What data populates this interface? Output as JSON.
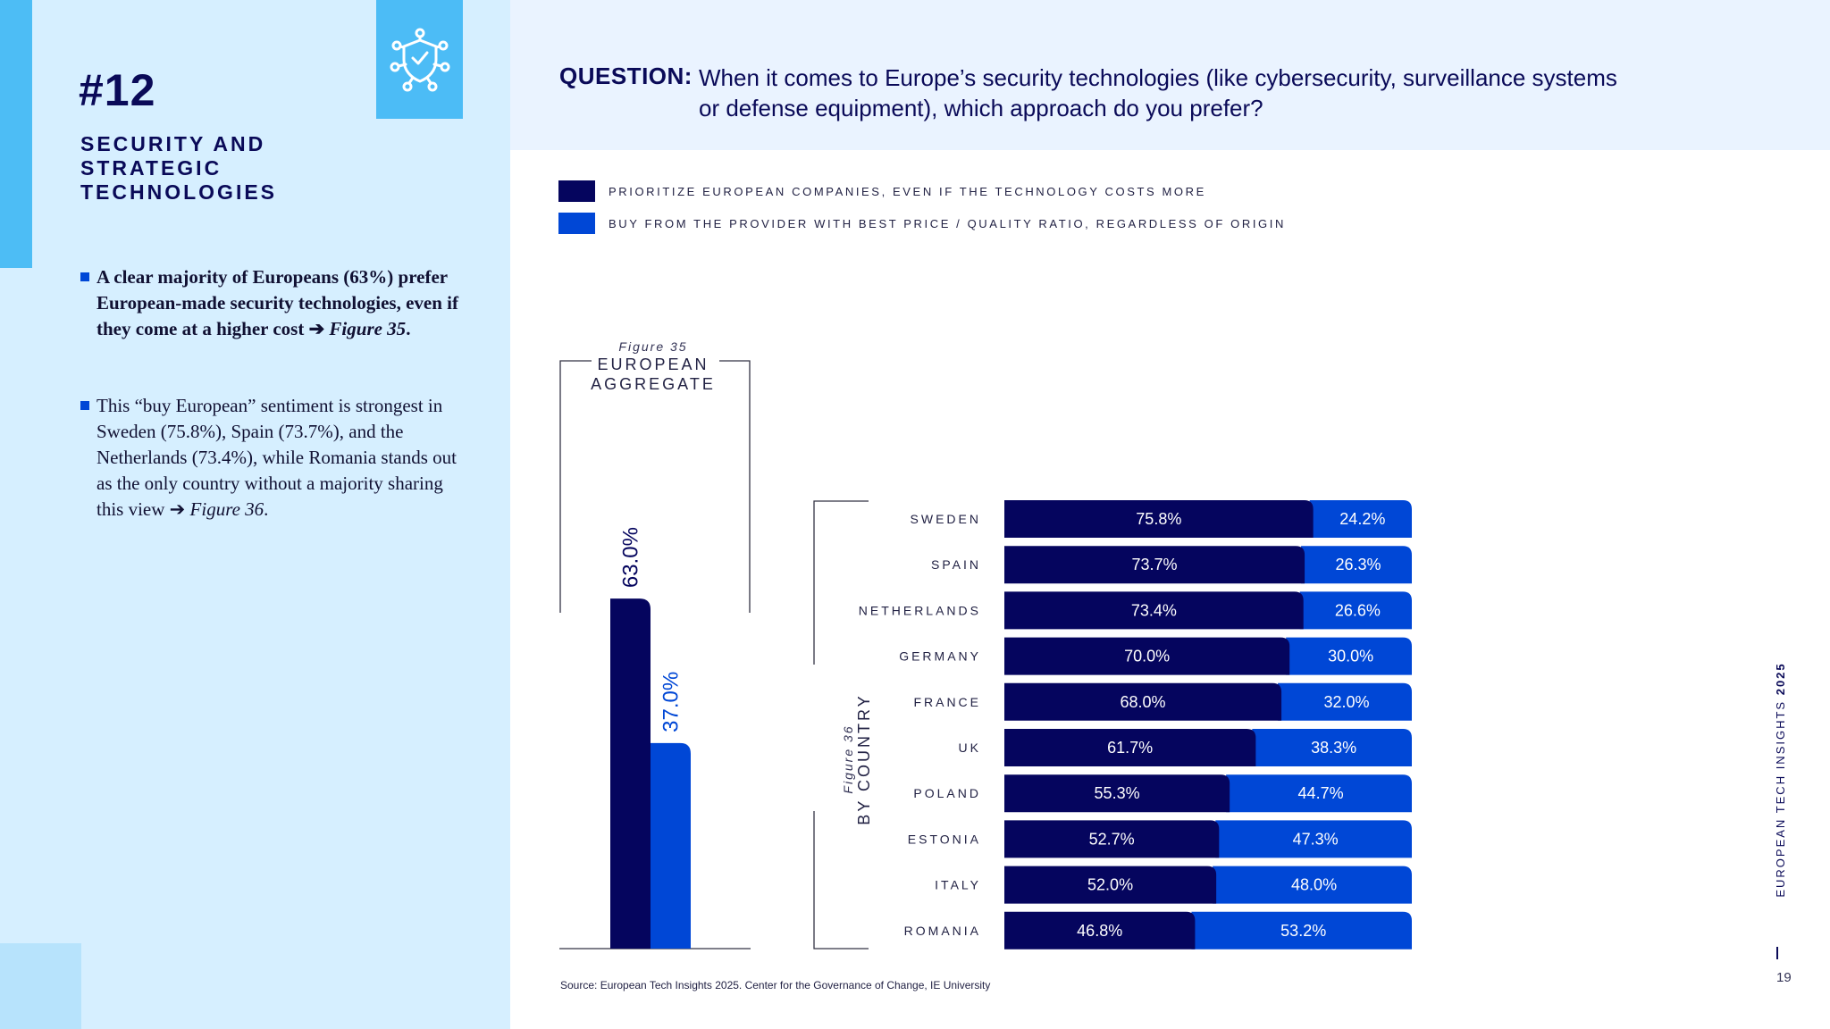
{
  "section": {
    "number": "#12",
    "title": "SECURITY AND STRATEGIC TECHNOLOGIES"
  },
  "bullets": [
    {
      "text": "A clear majority of Europeans (63%) prefer European-made security technologies, even if they come at a higher cost ",
      "arrow": "➔",
      "ref": "Figure 35",
      "end": "."
    },
    {
      "text": "This “buy European” sentiment is strongest in Sweden (75.8%), Spain (73.7%), and the Netherlands (73.4%), while Romania stands out as the only country without a majority sharing this view ",
      "arrow": "➔",
      "ref": "Figure 36",
      "end": "."
    }
  ],
  "question": {
    "label": "QUESTION:",
    "text": "When it comes to Europe’s security technologies (like cybersecurity, surveillance systems or defense equipment), which approach do you prefer?"
  },
  "colors": {
    "prioritize": "#05055e",
    "best_price": "#0047d6"
  },
  "legend": [
    {
      "label": "PRIORITIZE EUROPEAN COMPANIES, EVEN IF THE TECHNOLOGY COSTS MORE",
      "color": "#05055e"
    },
    {
      "label": "BUY FROM THE PROVIDER WITH BEST PRICE / QUALITY RATIO, REGARDLESS OF ORIGIN",
      "color": "#0047d6"
    }
  ],
  "chart_data": [
    {
      "type": "bar",
      "figure": "Figure 35",
      "title": "EUROPEAN AGGREGATE",
      "categories": [
        "Prioritize European companies",
        "Best price / quality ratio"
      ],
      "values": [
        63.0,
        37.0
      ],
      "value_labels": [
        "63.0%",
        "37.0%"
      ],
      "ylim": [
        0,
        100
      ]
    },
    {
      "type": "bar",
      "stacked": true,
      "orientation": "horizontal",
      "figure": "Figure 36",
      "title": "BY COUNTRY",
      "categories": [
        "SWEDEN",
        "SPAIN",
        "NETHERLANDS",
        "GERMANY",
        "FRANCE",
        "UK",
        "POLAND",
        "ESTONIA",
        "ITALY",
        "ROMANIA"
      ],
      "series": [
        {
          "values": [
            75.8,
            73.7,
            73.4,
            70.0,
            68.0,
            61.7,
            55.3,
            52.7,
            52.0,
            46.8
          ],
          "labels": [
            "75.8%",
            "73.7%",
            "73.4%",
            "70.0%",
            "68.0%",
            "61.7%",
            "55.3%",
            "52.7%",
            "52.0%",
            "46.8%"
          ]
        },
        {
          "values": [
            24.2,
            26.3,
            26.6,
            30.0,
            32.0,
            38.3,
            44.7,
            47.3,
            48.0,
            53.2
          ],
          "labels": [
            "24.2%",
            "26.3%",
            "26.6%",
            "30.0%",
            "32.0%",
            "38.3%",
            "44.7%",
            "47.3%",
            "48.0%",
            "53.2%"
          ]
        }
      ],
      "xlim": [
        0,
        100
      ]
    }
  ],
  "source": "Source: European Tech Insights 2025. Center for the Governance of Change, IE University",
  "footer": {
    "side_label": "EUROPEAN TECH INSIGHTS",
    "side_year": "2025",
    "page_number": "19"
  }
}
